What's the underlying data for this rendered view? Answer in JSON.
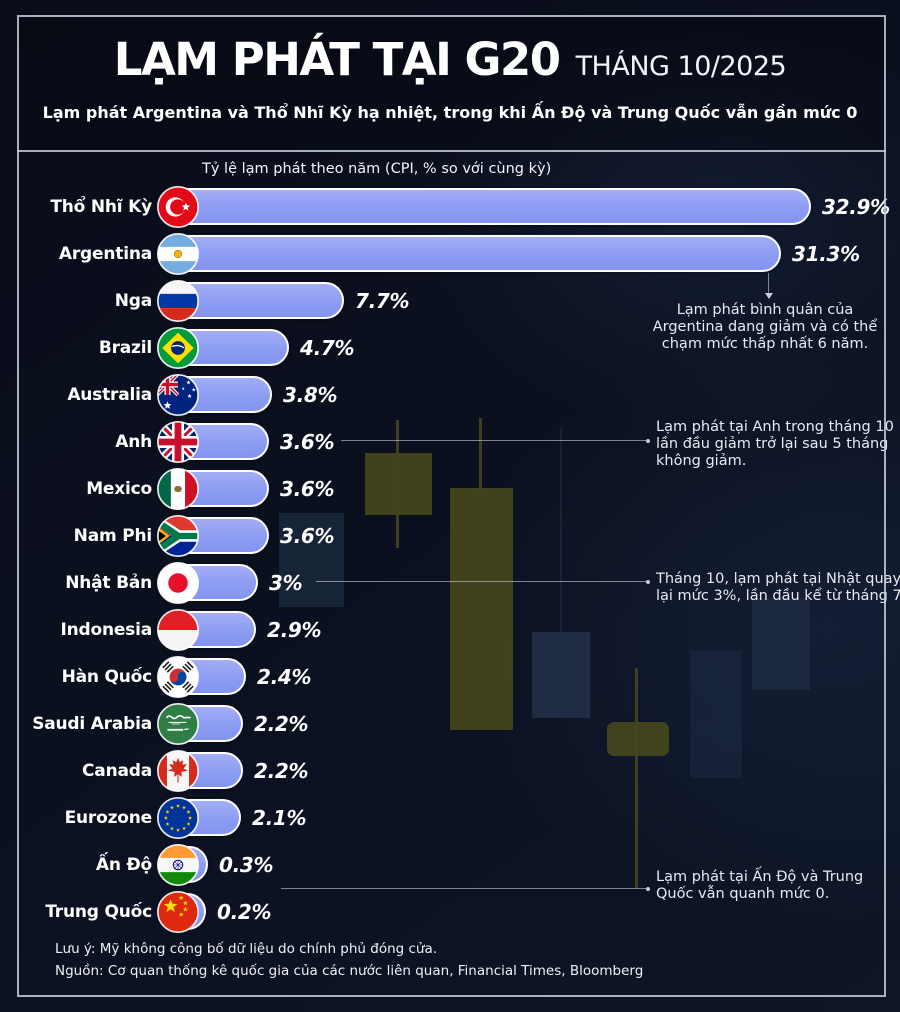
{
  "header": {
    "title": "LẠM PHÁT TẠI G20",
    "period": "THÁNG 10/2025",
    "subtitle": "Lạm phát Argentina và Thổ Nhĩ Kỳ hạ nhiệt, trong khi Ấn Độ và Trung Quốc vẫn gần mức 0"
  },
  "chart_data": {
    "type": "bar",
    "orientation": "horizontal",
    "title": "Tỷ lệ lạm phát theo năm (CPI, % so với cùng kỳ)",
    "unit": "%",
    "xlim": [
      0,
      35
    ],
    "grid": false,
    "legend": "none",
    "bar_color": "#8e9df1",
    "categories": [
      "Thổ Nhĩ Kỳ",
      "Argentina",
      "Nga",
      "Brazil",
      "Australia",
      "Anh",
      "Mexico",
      "Nam Phi",
      "Nhật Bản",
      "Indonesia",
      "Hàn Quốc",
      "Saudi Arabia",
      "Canada",
      "Eurozone",
      "Ấn Độ",
      "Trung Quốc"
    ],
    "values": [
      32.9,
      31.3,
      7.7,
      4.7,
      3.8,
      3.6,
      3.6,
      3.6,
      3,
      2.9,
      2.4,
      2.2,
      2.2,
      2.1,
      0.3,
      0.2
    ],
    "value_labels": [
      "32.9%",
      "31.3%",
      "7.7%",
      "4.7%",
      "3.8%",
      "3.6%",
      "3.6%",
      "3.6%",
      "3%",
      "2.9%",
      "2.4%",
      "2.2%",
      "2.2%",
      "2.1%",
      "0.3%",
      "0.2%"
    ],
    "flags": [
      "turkey",
      "argentina",
      "russia",
      "brazil",
      "australia",
      "uk",
      "mexico",
      "south-africa",
      "japan",
      "indonesia",
      "south-korea",
      "saudi-arabia",
      "canada",
      "eurozone",
      "india",
      "china"
    ],
    "annotations": [
      {
        "target": "Argentina",
        "lines": [
          "Lạm phát bình quân của",
          "Argentina dang giảm và có thể",
          "chạm mức thấp nhất 6 năm."
        ]
      },
      {
        "target": "Anh",
        "lines": [
          "Lạm phát tại Anh trong tháng 10",
          "lần đầu giảm trở lại sau 5 tháng",
          "không giảm."
        ]
      },
      {
        "target": "Nhật Bản",
        "lines": [
          "Tháng 10, lạm phát tại Nhật quay",
          "lại mức 3%, lần đầu kể từ tháng 7."
        ]
      },
      {
        "target": "Ấn Độ / Trung Quốc",
        "lines": [
          "Lạm phát tại Ấn Độ và Trung",
          "Quốc vẫn quanh mức 0."
        ]
      }
    ]
  },
  "footer": {
    "note": "Lưu ý: Mỹ không công bố dữ liệu do chính phủ đóng cửa.",
    "source": "Nguồn: Cơ quan thống kê quốc gia của các nước liên quan, Financial Times, Bloomberg"
  },
  "colors": {
    "background": "#0b101f",
    "bar": "#8e9df1",
    "bar_border": "#fdfdfd",
    "candle_olive": "#45451d",
    "candle_blue": "#2b3c59",
    "text": "#ffffff"
  }
}
